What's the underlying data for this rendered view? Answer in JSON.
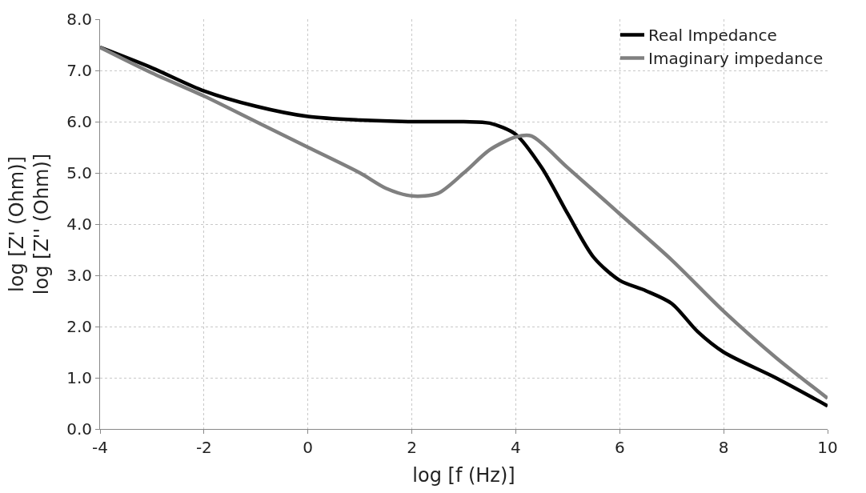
{
  "chart_data": {
    "type": "line",
    "xlabel": "log [f (Hz)]",
    "ylabel": "log [Z' (Ohm)]\nlog [Z'' (Ohm)]",
    "xlim": [
      -4,
      10
    ],
    "xticks": [
      -4,
      -2,
      0,
      2,
      4,
      6,
      8,
      10
    ],
    "ylim": [
      0,
      8
    ],
    "yticks": [
      {
        "value": 0,
        "label": "0.0"
      },
      {
        "value": 1,
        "label": "1.0"
      },
      {
        "value": 2,
        "label": "2.0"
      },
      {
        "value": 3,
        "label": "3.0"
      },
      {
        "value": 4,
        "label": "4.0"
      },
      {
        "value": 5,
        "label": "5.0"
      },
      {
        "value": 6,
        "label": "6.0"
      },
      {
        "value": 7,
        "label": "7.0"
      },
      {
        "value": 8,
        "label": "8.0"
      }
    ],
    "grid": true,
    "legend": "top right",
    "marker": "none",
    "line_style": "solid",
    "series": [
      {
        "name": "Real Impedance",
        "color": "#000000",
        "x": [
          -4,
          -3,
          -2,
          -1,
          0,
          1,
          2,
          3,
          3.5,
          4,
          4.5,
          5,
          5.5,
          6,
          6.5,
          7,
          7.5,
          8,
          9,
          10
        ],
        "values": [
          7.45,
          7.05,
          6.6,
          6.3,
          6.1,
          6.03,
          6.0,
          6.0,
          5.97,
          5.75,
          5.1,
          4.2,
          3.35,
          2.9,
          2.7,
          2.45,
          1.9,
          1.5,
          1.0,
          0.45
        ]
      },
      {
        "name": "Imaginary impedance",
        "color": "#808080",
        "x": [
          -4,
          -3,
          -2,
          -1,
          0,
          1,
          1.5,
          2,
          2.5,
          3,
          3.5,
          4,
          4.3,
          5,
          6,
          7,
          8,
          9,
          10
        ],
        "values": [
          7.45,
          6.95,
          6.5,
          6.0,
          5.5,
          5.0,
          4.7,
          4.55,
          4.6,
          5.0,
          5.45,
          5.7,
          5.72,
          5.1,
          4.2,
          3.3,
          2.3,
          1.4,
          0.6
        ]
      }
    ]
  }
}
